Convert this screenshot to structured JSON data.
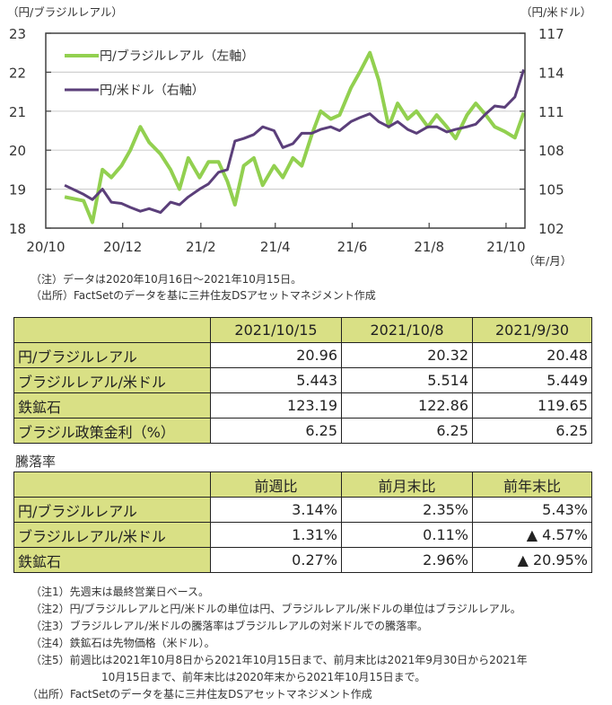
{
  "chart_data": {
    "type": "line",
    "title": "",
    "left_axis_unit": "（円/ブラジルレアル）",
    "right_axis_unit": "（円/米ドル）",
    "x_unit": "（年/月）",
    "x_ticks": [
      "20/10",
      "20/12",
      "21/2",
      "21/4",
      "21/6",
      "21/8",
      "21/10"
    ],
    "y_left": {
      "range": [
        18,
        23
      ],
      "ticks": [
        "18",
        "19",
        "20",
        "21",
        "22",
        "23"
      ]
    },
    "y_right": {
      "range": [
        102,
        117
      ],
      "ticks": [
        "102",
        "105",
        "108",
        "111",
        "114",
        "117"
      ]
    },
    "grid": true,
    "legend_position": "top-left",
    "x_dates": [
      "2020-10-16",
      "2020-10-31",
      "2020-11-07",
      "2020-11-15",
      "2020-11-22",
      "2020-11-30",
      "2020-12-07",
      "2020-12-15",
      "2020-12-22",
      "2020-12-31",
      "2021-01-08",
      "2021-01-15",
      "2021-01-22",
      "2021-01-31",
      "2021-02-07",
      "2021-02-15",
      "2021-02-22",
      "2021-02-28",
      "2021-03-07",
      "2021-03-15",
      "2021-03-22",
      "2021-03-31",
      "2021-04-07",
      "2021-04-15",
      "2021-04-22",
      "2021-04-30",
      "2021-05-07",
      "2021-05-15",
      "2021-05-22",
      "2021-05-31",
      "2021-06-07",
      "2021-06-15",
      "2021-06-22",
      "2021-06-30",
      "2021-07-07",
      "2021-07-15",
      "2021-07-22",
      "2021-07-31",
      "2021-08-07",
      "2021-08-15",
      "2021-08-22",
      "2021-08-31",
      "2021-09-07",
      "2021-09-15",
      "2021-09-22",
      "2021-09-30",
      "2021-10-08",
      "2021-10-15"
    ],
    "series": [
      {
        "name": "円/ブラジルレアル（左軸）",
        "axis": "left",
        "color": "#92d050",
        "values": [
          18.8,
          18.7,
          18.15,
          19.5,
          19.3,
          19.6,
          20.0,
          20.6,
          20.2,
          19.9,
          19.5,
          19.0,
          19.8,
          19.3,
          19.7,
          19.7,
          19.2,
          18.6,
          19.6,
          19.8,
          19.1,
          19.6,
          19.3,
          19.8,
          19.6,
          20.4,
          21.0,
          20.8,
          20.9,
          21.6,
          22.0,
          22.5,
          21.8,
          20.6,
          21.2,
          20.8,
          21.0,
          20.6,
          20.9,
          20.6,
          20.3,
          20.9,
          21.2,
          20.9,
          20.6,
          20.48,
          20.32,
          20.96
        ]
      },
      {
        "name": "円/米ドル（右軸）",
        "axis": "right",
        "color": "#5b3f7a",
        "values": [
          105.3,
          104.6,
          104.2,
          105.0,
          104.0,
          103.9,
          103.6,
          103.3,
          103.5,
          103.2,
          104.0,
          103.8,
          104.4,
          105.0,
          105.4,
          106.3,
          106.5,
          108.7,
          108.9,
          109.2,
          109.8,
          109.5,
          108.2,
          108.5,
          109.3,
          109.3,
          109.6,
          109.8,
          109.5,
          110.2,
          110.5,
          110.8,
          110.2,
          109.8,
          110.2,
          109.6,
          109.3,
          109.8,
          109.8,
          109.4,
          109.6,
          109.8,
          110.0,
          110.8,
          111.4,
          111.3,
          112.1,
          114.2
        ]
      }
    ]
  },
  "notes_top": [
    "（注）データは2020年10月16日～2021年10月15日。",
    "（出所）FactSetのデータを基に三井住友DSアセットマネジメント作成"
  ],
  "table1": {
    "headers": [
      "",
      "2021/10/15",
      "2021/10/8",
      "2021/9/30"
    ],
    "rows": [
      {
        "label": "円/ブラジルレアル",
        "values": [
          "20.96",
          "20.32",
          "20.48"
        ]
      },
      {
        "label": "ブラジルレアル/米ドル",
        "values": [
          "5.443",
          "5.514",
          "5.449"
        ]
      },
      {
        "label": "鉄鉱石",
        "values": [
          "123.19",
          "122.86",
          "119.65"
        ]
      },
      {
        "label": "ブラジル政策金利（%）",
        "values": [
          "6.25",
          "6.25",
          "6.25"
        ]
      }
    ]
  },
  "table2_title": "騰落率",
  "table2": {
    "headers": [
      "",
      "前週比",
      "前月末比",
      "前年末比"
    ],
    "rows": [
      {
        "label": "円/ブラジルレアル",
        "values": [
          "3.14%",
          "2.35%",
          "5.43%"
        ]
      },
      {
        "label": "ブラジルレアル/米ドル",
        "values": [
          "1.31%",
          "0.11%",
          "▲ 4.57%"
        ]
      },
      {
        "label": "鉄鉱石",
        "values": [
          "0.27%",
          "2.96%",
          "▲ 20.95%"
        ]
      }
    ]
  },
  "footnotes": [
    "（注1）先週末は最終営業日ベース。",
    "（注2）円/ブラジルレアルと円/米ドルの単位は円、ブラジルレアル/米ドルの単位はブラジルレアル。",
    "（注3）ブラジルレアル/米ドルの騰落率はブラジルレアルの対米ドルでの騰落率。",
    "（注4）鉄鉱石は先物価格（米ドル）。",
    "（注5）前週比は2021年10月8日から2021年10月15日まで、前月末比は2021年9月30日から2021年",
    "10月15日まで、前年末比は2020年末から2021年10月15日まで。",
    "（出所）FactSetのデータを基に三井住友DSアセットマネジメント作成"
  ],
  "colors": {
    "header_bg": "#d9e085",
    "brl_line": "#92d050",
    "usd_line": "#5b3f7a"
  }
}
